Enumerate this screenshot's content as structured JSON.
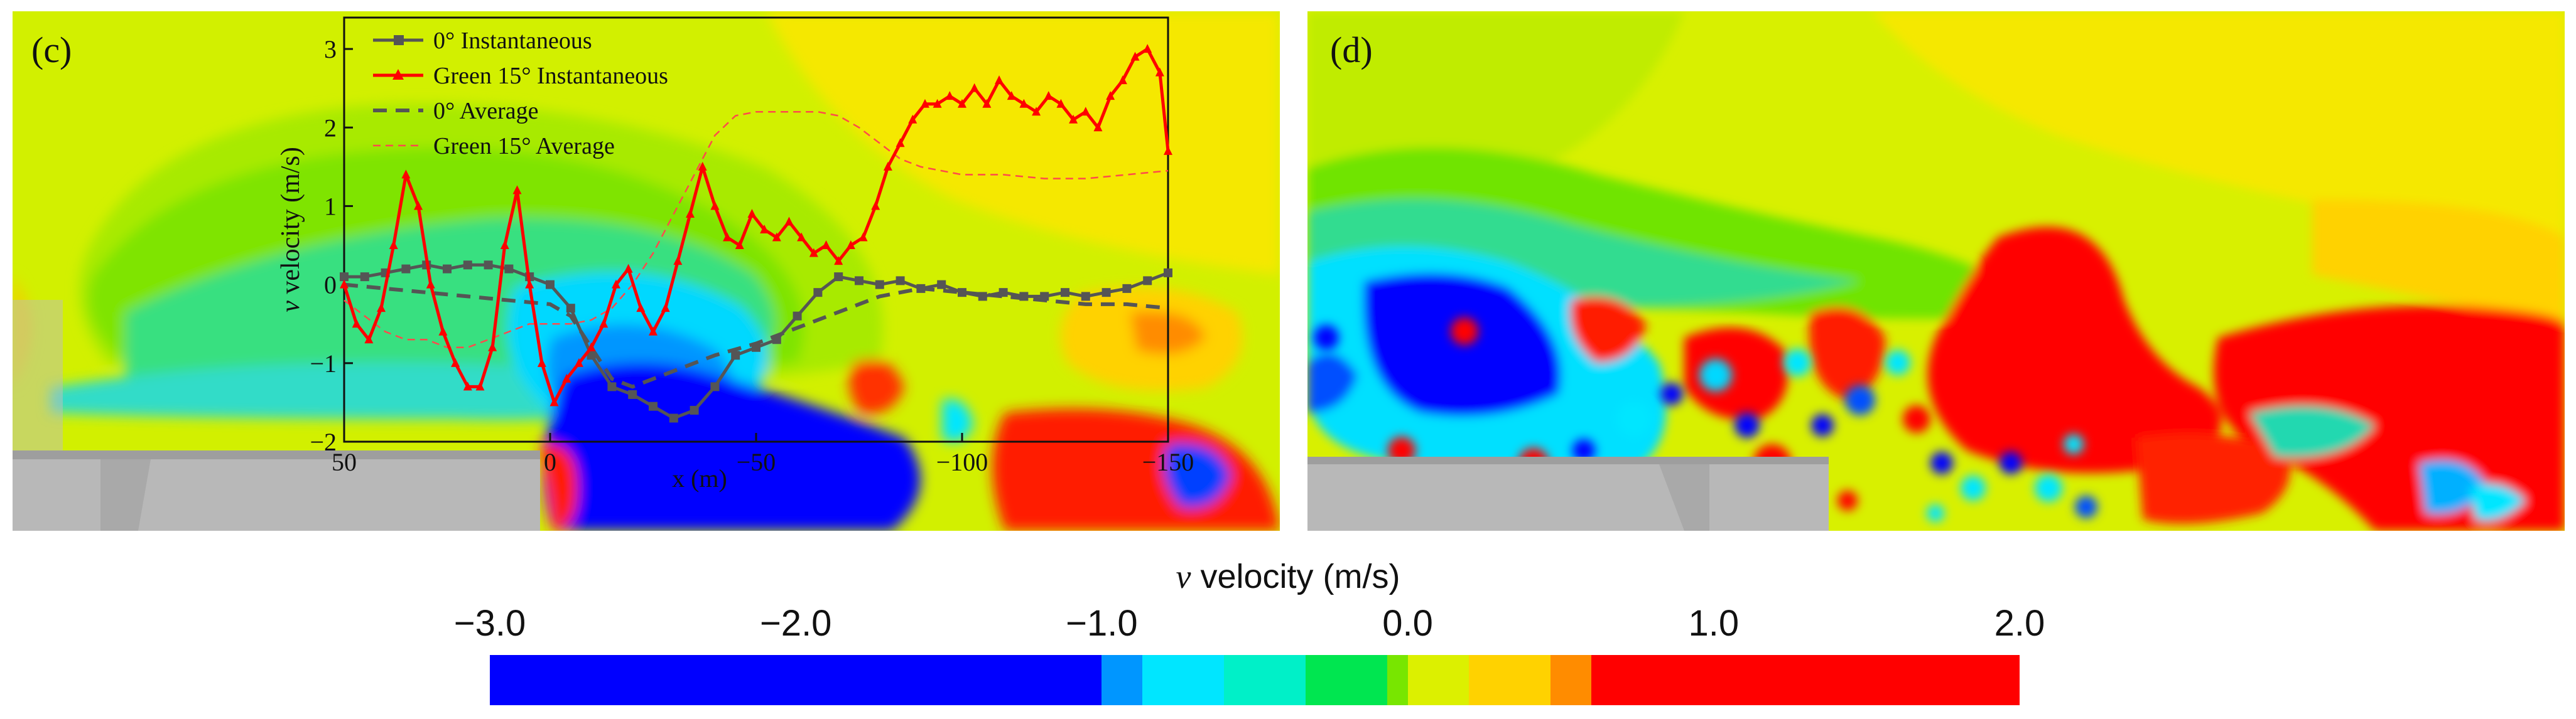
{
  "chart_data": [
    {
      "type": "line",
      "panel_label": "(c)",
      "xlabel": "x (m)",
      "ylabel_var": "v",
      "ylabel_rest": " velocity (m/s)",
      "xlim": [
        50,
        -150
      ],
      "ylim": [
        -2,
        3.4
      ],
      "xticks": [
        50,
        0,
        -50,
        -100,
        -150
      ],
      "xtick_labels": [
        "50",
        "0",
        "−50",
        "−100",
        "−150"
      ],
      "yticks": [
        -2,
        -1,
        0,
        1,
        2,
        3
      ],
      "ytick_labels": [
        "−2",
        "−1",
        "0",
        "1",
        "2",
        "3"
      ],
      "legend_position": "top-left",
      "series": [
        {
          "name": "0° Instantaneous",
          "color": "#555555",
          "style": "solid-square",
          "x": [
            50,
            45,
            40,
            35,
            30,
            25,
            20,
            15,
            10,
            5,
            0,
            -5,
            -10,
            -15,
            -20,
            -25,
            -30,
            -35,
            -40,
            -45,
            -50,
            -55,
            -60,
            -65,
            -70,
            -75,
            -80,
            -85,
            -90,
            -95,
            -100,
            -105,
            -110,
            -115,
            -120,
            -125,
            -130,
            -135,
            -140,
            -145,
            -150
          ],
          "y": [
            0.1,
            0.1,
            0.15,
            0.2,
            0.25,
            0.2,
            0.25,
            0.25,
            0.2,
            0.1,
            0.0,
            -0.3,
            -0.9,
            -1.3,
            -1.4,
            -1.55,
            -1.7,
            -1.6,
            -1.3,
            -0.9,
            -0.8,
            -0.7,
            -0.4,
            -0.1,
            0.1,
            0.05,
            0.0,
            0.05,
            -0.05,
            0.0,
            -0.1,
            -0.15,
            -0.1,
            -0.15,
            -0.15,
            -0.1,
            -0.15,
            -0.1,
            -0.05,
            0.05,
            0.15
          ]
        },
        {
          "name": "Green 15° Instantaneous",
          "color": "#ff0000",
          "style": "solid-triangle",
          "x": [
            50,
            47,
            44,
            41,
            38,
            35,
            32,
            29,
            26,
            23,
            20,
            17,
            14,
            11,
            8,
            5,
            2,
            -1,
            -4,
            -7,
            -10,
            -13,
            -16,
            -19,
            -22,
            -25,
            -28,
            -31,
            -34,
            -37,
            -40,
            -43,
            -46,
            -49,
            -52,
            -55,
            -58,
            -61,
            -64,
            -67,
            -70,
            -73,
            -76,
            -79,
            -82,
            -85,
            -88,
            -91,
            -94,
            -97,
            -100,
            -103,
            -106,
            -109,
            -112,
            -115,
            -118,
            -121,
            -124,
            -127,
            -130,
            -133,
            -136,
            -139,
            -142,
            -145,
            -148,
            -150
          ],
          "y": [
            0.0,
            -0.5,
            -0.7,
            -0.3,
            0.5,
            1.4,
            1.0,
            0.0,
            -0.6,
            -1.0,
            -1.3,
            -1.3,
            -0.8,
            0.5,
            1.2,
            0.0,
            -1.0,
            -1.5,
            -1.2,
            -1.0,
            -0.8,
            -0.5,
            0.0,
            0.2,
            -0.3,
            -0.6,
            -0.3,
            0.3,
            0.9,
            1.5,
            1.0,
            0.6,
            0.5,
            0.9,
            0.7,
            0.6,
            0.8,
            0.6,
            0.4,
            0.5,
            0.3,
            0.5,
            0.6,
            1.0,
            1.5,
            1.8,
            2.1,
            2.3,
            2.3,
            2.4,
            2.3,
            2.5,
            2.3,
            2.6,
            2.4,
            2.3,
            2.2,
            2.4,
            2.3,
            2.1,
            2.2,
            2.0,
            2.4,
            2.6,
            2.9,
            3.0,
            2.7,
            1.7
          ]
        },
        {
          "name": "0° Average",
          "color": "#555555",
          "style": "dashed",
          "x": [
            50,
            40,
            30,
            20,
            10,
            0,
            -5,
            -10,
            -15,
            -20,
            -25,
            -30,
            -40,
            -50,
            -60,
            -70,
            -80,
            -90,
            -100,
            -110,
            -120,
            -130,
            -140,
            -150
          ],
          "y": [
            0.0,
            -0.05,
            -0.1,
            -0.15,
            -0.2,
            -0.25,
            -0.4,
            -0.8,
            -1.2,
            -1.3,
            -1.2,
            -1.1,
            -0.9,
            -0.75,
            -0.55,
            -0.35,
            -0.15,
            -0.05,
            -0.1,
            -0.15,
            -0.2,
            -0.25,
            -0.25,
            -0.3
          ]
        },
        {
          "name": "Green 15° Average",
          "color": "#ff4a4a",
          "style": "thin-dashed",
          "x": [
            50,
            45,
            40,
            35,
            30,
            25,
            20,
            15,
            10,
            5,
            0,
            -5,
            -10,
            -15,
            -20,
            -25,
            -30,
            -35,
            -40,
            -45,
            -50,
            -55,
            -60,
            -65,
            -70,
            -75,
            -80,
            -85,
            -90,
            -95,
            -100,
            -110,
            -120,
            -130,
            -140,
            -150
          ],
          "y": [
            -0.2,
            -0.4,
            -0.6,
            -0.7,
            -0.7,
            -0.8,
            -0.8,
            -0.7,
            -0.6,
            -0.5,
            -0.5,
            -0.5,
            -0.45,
            -0.3,
            0.0,
            0.4,
            0.9,
            1.4,
            1.9,
            2.15,
            2.2,
            2.2,
            2.2,
            2.2,
            2.15,
            2.0,
            1.8,
            1.6,
            1.5,
            1.45,
            1.4,
            1.4,
            1.35,
            1.35,
            1.4,
            1.45
          ]
        }
      ]
    },
    {
      "type": "heatmap",
      "panel_label": "(d)"
    }
  ],
  "colorbar": {
    "title_var": "v",
    "title_rest": " velocity (m/s)",
    "ticks": [
      {
        "label": "−3.0",
        "value": -3.0
      },
      {
        "label": "−2.0",
        "value": -2.0
      },
      {
        "label": "−1.0",
        "value": -1.0
      },
      {
        "label": "0.0",
        "value": 0.0
      },
      {
        "label": "1.0",
        "value": 1.0
      },
      {
        "label": "2.0",
        "value": 2.0
      }
    ],
    "min": -3.0,
    "max": 2.0,
    "bands": [
      {
        "from": -3.0,
        "to": -1.0,
        "color": "#0000ff"
      },
      {
        "from": -1.0,
        "to": -0.8667,
        "color": "#0096ff"
      },
      {
        "from": -0.8667,
        "to": -0.6,
        "color": "#00e6ff"
      },
      {
        "from": -0.6,
        "to": -0.3333,
        "color": "#00f0c8"
      },
      {
        "from": -0.3333,
        "to": -0.0667,
        "color": "#00e650"
      },
      {
        "from": -0.0667,
        "to": 0.0,
        "color": "#78e600"
      },
      {
        "from": 0.0,
        "to": 0.2,
        "color": "#dcf000"
      },
      {
        "from": 0.2,
        "to": 0.4667,
        "color": "#ffd200"
      },
      {
        "from": 0.4667,
        "to": 0.6,
        "color": "#ff8c00"
      },
      {
        "from": 0.6,
        "to": 2.0,
        "color": "#ff0000"
      }
    ]
  }
}
